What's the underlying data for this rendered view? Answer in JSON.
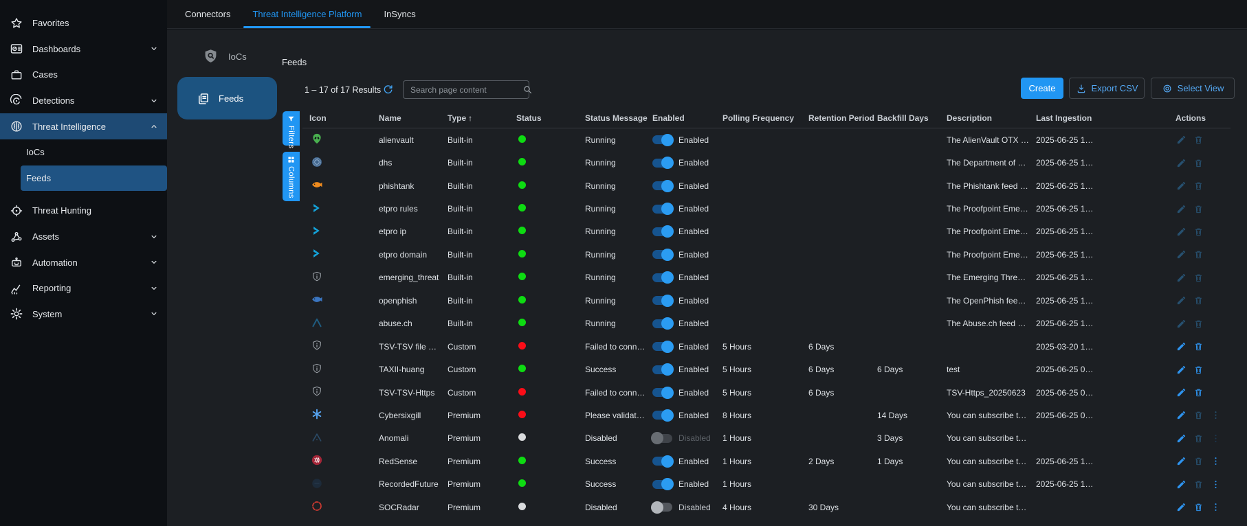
{
  "window_tabs": [
    {
      "label": "Connectors",
      "active": false
    },
    {
      "label": "Threat Intelligence Platform",
      "active": true
    },
    {
      "label": "InSyncs",
      "active": false
    }
  ],
  "sidebar": {
    "items": [
      {
        "label": "Favorites",
        "icon": "star-icon",
        "chevron": null,
        "sub": false,
        "active": false
      },
      {
        "label": "Dashboards",
        "icon": "dashboard-icon",
        "chevron": "down",
        "sub": false,
        "active": false
      },
      {
        "label": "Cases",
        "icon": "briefcase-icon",
        "chevron": null,
        "sub": false,
        "active": false
      },
      {
        "label": "Detections",
        "icon": "detections-icon",
        "chevron": "down",
        "sub": false,
        "active": false
      },
      {
        "label": "Threat Intelligence",
        "icon": "brain-icon",
        "chevron": "up",
        "sub": false,
        "active": true
      },
      {
        "label": "IoCs",
        "icon": null,
        "chevron": null,
        "sub": true,
        "active": false
      },
      {
        "label": "Feeds",
        "icon": null,
        "chevron": null,
        "sub": true,
        "active": true
      },
      {
        "label": "Threat Hunting",
        "icon": "target-icon",
        "chevron": null,
        "sub": false,
        "active": false
      },
      {
        "label": "Assets",
        "icon": "assets-icon",
        "chevron": "down",
        "sub": false,
        "active": false
      },
      {
        "label": "Automation",
        "icon": "robot-icon",
        "chevron": "down",
        "sub": false,
        "active": false
      },
      {
        "label": "Reporting",
        "icon": "chart-icon",
        "chevron": "down",
        "sub": false,
        "active": false
      },
      {
        "label": "System",
        "icon": "gear-icon",
        "chevron": "down",
        "sub": false,
        "active": false
      }
    ]
  },
  "subnav": {
    "iocs_label": "IoCs",
    "feeds_label": "Feeds"
  },
  "page": {
    "title": "Feeds",
    "results_summary": "1 – 17 of 17 Results",
    "search_placeholder": "Search page content"
  },
  "toolbar": {
    "create": "Create",
    "export_csv": "Export CSV",
    "select_view": "Select View"
  },
  "side_tabs": {
    "filters": "Filters",
    "columns": "Columns"
  },
  "table": {
    "headers": [
      "Icon",
      "Name",
      "Type",
      "Status",
      "Status Message",
      "Enabled",
      "Polling Frequency",
      "Retention Period",
      "Backfill Days",
      "Description",
      "Last Ingestion",
      "Actions"
    ],
    "sorted_header": "Type",
    "sort_indicator": "↑",
    "rows": [
      {
        "icon": "alienvault-icon",
        "name": "alienvault",
        "type": "Built-in",
        "status": "green",
        "status_message": "Running",
        "enabled_label": "Enabled",
        "enabled_state": "on",
        "polling_frequency": "",
        "retention_period": "",
        "backfill_days": "",
        "description": "The AlienVault OTX …",
        "last_ingestion": "2025-06-25 1…",
        "actions": {
          "edit": "muted",
          "delete": "muted",
          "menu": "none"
        }
      },
      {
        "icon": "dhs-icon",
        "name": "dhs",
        "type": "Built-in",
        "status": "green",
        "status_message": "Running",
        "enabled_label": "Enabled",
        "enabled_state": "on",
        "polling_frequency": "",
        "retention_period": "",
        "backfill_days": "",
        "description": "The Department of …",
        "last_ingestion": "2025-06-25 1…",
        "actions": {
          "edit": "muted",
          "delete": "muted",
          "menu": "none"
        }
      },
      {
        "icon": "phishtank-icon",
        "name": "phishtank",
        "type": "Built-in",
        "status": "green",
        "status_message": "Running",
        "enabled_label": "Enabled",
        "enabled_state": "on",
        "polling_frequency": "",
        "retention_period": "",
        "backfill_days": "",
        "description": "The Phishtank feed …",
        "last_ingestion": "2025-06-25 1…",
        "actions": {
          "edit": "muted",
          "delete": "muted",
          "menu": "none"
        }
      },
      {
        "icon": "etpro-icon",
        "name": "etpro rules",
        "type": "Built-in",
        "status": "green",
        "status_message": "Running",
        "enabled_label": "Enabled",
        "enabled_state": "on",
        "polling_frequency": "",
        "retention_period": "",
        "backfill_days": "",
        "description": "The Proofpoint Eme…",
        "last_ingestion": "2025-06-25 1…",
        "actions": {
          "edit": "muted",
          "delete": "muted",
          "menu": "none"
        }
      },
      {
        "icon": "etpro-icon",
        "name": "etpro ip",
        "type": "Built-in",
        "status": "green",
        "status_message": "Running",
        "enabled_label": "Enabled",
        "enabled_state": "on",
        "polling_frequency": "",
        "retention_period": "",
        "backfill_days": "",
        "description": "The Proofpoint Eme…",
        "last_ingestion": "2025-06-25 1…",
        "actions": {
          "edit": "muted",
          "delete": "muted",
          "menu": "none"
        }
      },
      {
        "icon": "etpro-icon",
        "name": "etpro domain",
        "type": "Built-in",
        "status": "green",
        "status_message": "Running",
        "enabled_label": "Enabled",
        "enabled_state": "on",
        "polling_frequency": "",
        "retention_period": "",
        "backfill_days": "",
        "description": "The Proofpoint Eme…",
        "last_ingestion": "2025-06-25 1…",
        "actions": {
          "edit": "muted",
          "delete": "muted",
          "menu": "none"
        }
      },
      {
        "icon": "shield-info-icon",
        "name": "emerging_threat",
        "type": "Built-in",
        "status": "green",
        "status_message": "Running",
        "enabled_label": "Enabled",
        "enabled_state": "on",
        "polling_frequency": "",
        "retention_period": "",
        "backfill_days": "",
        "description": "The Emerging Thre…",
        "last_ingestion": "2025-06-25 1…",
        "actions": {
          "edit": "muted",
          "delete": "muted",
          "menu": "none"
        }
      },
      {
        "icon": "openphish-icon",
        "name": "openphish",
        "type": "Built-in",
        "status": "green",
        "status_message": "Running",
        "enabled_label": "Enabled",
        "enabled_state": "on",
        "polling_frequency": "",
        "retention_period": "",
        "backfill_days": "",
        "description": "The OpenPhish fee…",
        "last_ingestion": "2025-06-25 1…",
        "actions": {
          "edit": "muted",
          "delete": "muted",
          "menu": "none"
        }
      },
      {
        "icon": "abusech-icon",
        "name": "abuse.ch",
        "type": "Built-in",
        "status": "green",
        "status_message": "Running",
        "enabled_label": "Enabled",
        "enabled_state": "on",
        "polling_frequency": "",
        "retention_period": "",
        "backfill_days": "",
        "description": "The Abuse.ch feed …",
        "last_ingestion": "2025-06-25 1…",
        "actions": {
          "edit": "muted",
          "delete": "muted",
          "menu": "none"
        }
      },
      {
        "icon": "shield-info-icon",
        "name": "TSV-TSV file …",
        "type": "Custom",
        "status": "red",
        "status_message": "Failed to conn…",
        "enabled_label": "Enabled",
        "enabled_state": "on",
        "polling_frequency": "5 Hours",
        "retention_period": "6 Days",
        "backfill_days": "",
        "description": "",
        "last_ingestion": "2025-03-20 1…",
        "actions": {
          "edit": "bright",
          "delete": "bright",
          "menu": "none"
        }
      },
      {
        "icon": "shield-info-icon",
        "name": "TAXII-huang",
        "type": "Custom",
        "status": "green",
        "status_message": "Success",
        "enabled_label": "Enabled",
        "enabled_state": "on",
        "polling_frequency": "5 Hours",
        "retention_period": "6 Days",
        "backfill_days": "6 Days",
        "description": "test",
        "last_ingestion": "2025-06-25 0…",
        "actions": {
          "edit": "bright",
          "delete": "bright",
          "menu": "none"
        }
      },
      {
        "icon": "shield-info-icon",
        "name": "TSV-TSV-Https",
        "type": "Custom",
        "status": "red",
        "status_message": "Failed to conn…",
        "enabled_label": "Enabled",
        "enabled_state": "on",
        "polling_frequency": "5 Hours",
        "retention_period": "6 Days",
        "backfill_days": "",
        "description": "TSV-Https_20250623",
        "last_ingestion": "2025-06-25 0…",
        "actions": {
          "edit": "bright",
          "delete": "bright",
          "menu": "none"
        }
      },
      {
        "icon": "cybersixgill-icon",
        "name": "Cybersixgill",
        "type": "Premium",
        "status": "red",
        "status_message": "Please validat…",
        "enabled_label": "Enabled",
        "enabled_state": "on",
        "polling_frequency": "8 Hours",
        "retention_period": "",
        "backfill_days": "14 Days",
        "description": "You can subscribe t…",
        "last_ingestion": "2025-06-25 0…",
        "actions": {
          "edit": "bright",
          "delete": "muted",
          "menu": "muted"
        }
      },
      {
        "icon": "anomali-icon",
        "name": "Anomali",
        "type": "Premium",
        "status": "gray",
        "status_message": "Disabled",
        "enabled_label": "Disabled",
        "enabled_state": "off-dim",
        "polling_frequency": "1 Hours",
        "retention_period": "",
        "backfill_days": "3 Days",
        "description": "You can subscribe t…",
        "last_ingestion": "",
        "actions": {
          "edit": "bright",
          "delete": "muted",
          "menu": "dim"
        }
      },
      {
        "icon": "redsense-icon",
        "name": "RedSense",
        "type": "Premium",
        "status": "green",
        "status_message": "Success",
        "enabled_label": "Enabled",
        "enabled_state": "on",
        "polling_frequency": "1 Hours",
        "retention_period": "2 Days",
        "backfill_days": "1 Days",
        "description": "You can subscribe t…",
        "last_ingestion": "2025-06-25 1…",
        "actions": {
          "edit": "bright",
          "delete": "muted",
          "menu": "bright"
        }
      },
      {
        "icon": "recordedfuture-icon",
        "name": "RecordedFuture",
        "type": "Premium",
        "status": "green",
        "status_message": "Success",
        "enabled_label": "Enabled",
        "enabled_state": "on",
        "polling_frequency": "1 Hours",
        "retention_period": "",
        "backfill_days": "",
        "description": "You can subscribe t…",
        "last_ingestion": "2025-06-25 1…",
        "actions": {
          "edit": "bright",
          "delete": "muted",
          "menu": "bright"
        }
      },
      {
        "icon": "socradar-icon",
        "name": "SOCRadar",
        "type": "Premium",
        "status": "gray",
        "status_message": "Disabled",
        "enabled_label": "Disabled",
        "enabled_state": "off-light",
        "polling_frequency": "4 Hours",
        "retention_period": "30 Days",
        "backfill_days": "",
        "description": "You can subscribe t…",
        "last_ingestion": "",
        "actions": {
          "edit": "bright",
          "delete": "bright",
          "menu": "bright"
        }
      }
    ]
  },
  "colors": {
    "accent": "#2196f3",
    "status_green": "#0edb12",
    "status_red": "#fb0d18",
    "status_gray": "#d9dbdd",
    "toggle_on_knob": "#2b9cf2",
    "active_nav_bg": "#1e4a74"
  }
}
